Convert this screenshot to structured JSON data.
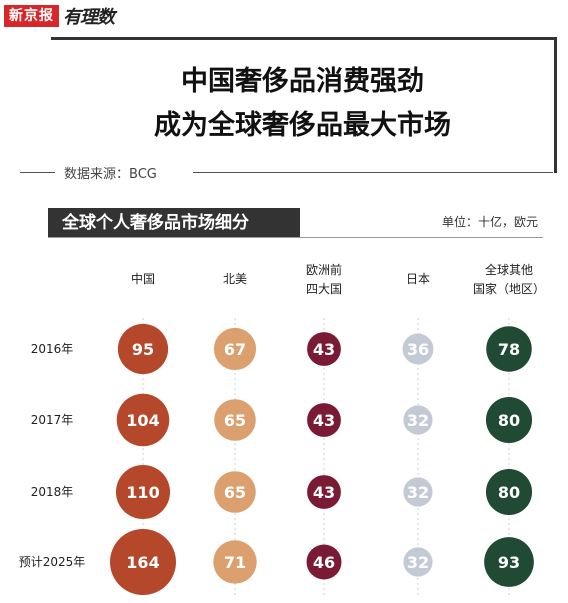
{
  "brand": {
    "name": "新京报",
    "column": "有理数"
  },
  "title": {
    "line1": "中国奢侈品消费强劲",
    "line2": "成为全球奢侈品最大市场"
  },
  "source": "数据来源：BCG",
  "subhead": "全球个人奢侈品市场细分",
  "unit": "单位：十亿，欧元",
  "chart_data": {
    "type": "bubble-grid",
    "rows": [
      "2016年",
      "2017年",
      "2018年",
      "预计2025年"
    ],
    "series": [
      {
        "name": "中国",
        "values": [
          95,
          104,
          110,
          164
        ],
        "color": "#b5472a"
      },
      {
        "name": "北美",
        "values": [
          67,
          65,
          65,
          71
        ],
        "color": "#dba06d"
      },
      {
        "name": "欧洲前\n四大国",
        "values": [
          43,
          43,
          43,
          46
        ],
        "color": "#7a1a34"
      },
      {
        "name": "日本",
        "values": [
          36,
          32,
          32,
          32
        ],
        "color": "#c3cad6"
      },
      {
        "name": "全球其他\n国家（地区）",
        "values": [
          78,
          80,
          80,
          93
        ],
        "color": "#204a33"
      }
    ]
  }
}
